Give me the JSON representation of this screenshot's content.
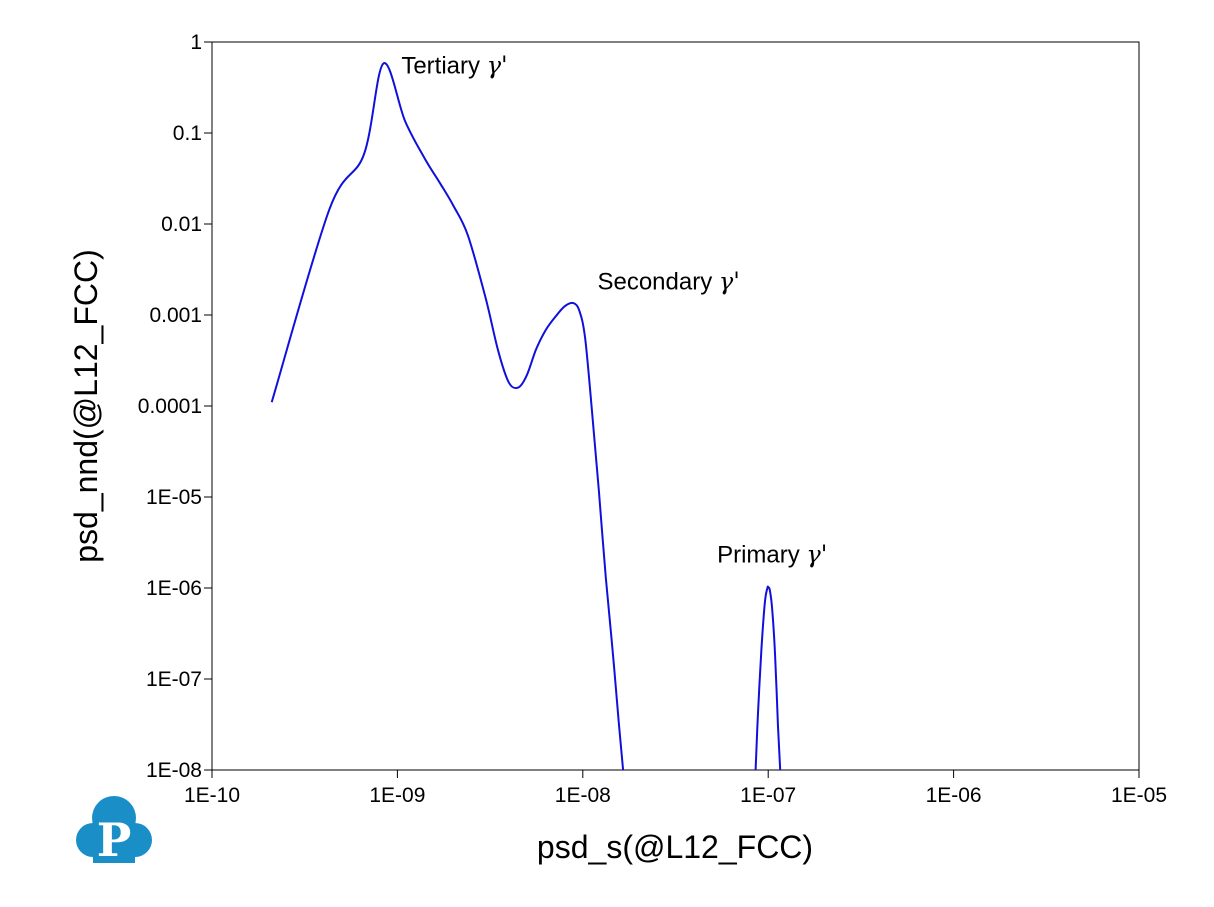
{
  "chart_data": {
    "type": "line",
    "title": "",
    "xlabel": "psd_s(@L12_FCC)",
    "ylabel": "psd_nnd(@L12_FCC)",
    "xscale": "log",
    "yscale": "log",
    "xlim": [
      1e-10,
      1e-05
    ],
    "ylim": [
      1e-08,
      1
    ],
    "grid": false,
    "legend": "none",
    "line_color": "#1010dd",
    "x_ticks": [
      {
        "value": 1e-10,
        "label": "1E-10"
      },
      {
        "value": 1e-09,
        "label": "1E-09"
      },
      {
        "value": 1e-08,
        "label": "1E-08"
      },
      {
        "value": 1e-07,
        "label": "1E-07"
      },
      {
        "value": 1e-06,
        "label": "1E-06"
      },
      {
        "value": 1e-05,
        "label": "1E-05"
      }
    ],
    "y_ticks": [
      {
        "value": 1,
        "label": "1"
      },
      {
        "value": 0.1,
        "label": "0.1"
      },
      {
        "value": 0.01,
        "label": "0.01"
      },
      {
        "value": 0.001,
        "label": "0.001"
      },
      {
        "value": 0.0001,
        "label": "0.0001"
      },
      {
        "value": 1e-05,
        "label": "1E-05"
      },
      {
        "value": 1e-06,
        "label": "1E-06"
      },
      {
        "value": 1e-07,
        "label": "1E-07"
      },
      {
        "value": 1e-08,
        "label": "1E-08"
      }
    ],
    "series": [
      {
        "x": [
          2.1e-10,
          4.3e-10,
          6.6e-10,
          8.4e-10,
          1.1e-09,
          1.4e-09,
          1.7e-09,
          2e-09,
          2.4e-09,
          3e-09,
          3.5e-09,
          4e-09,
          4.5e-09,
          5e-09,
          5.6e-09,
          6.3e-09,
          7.1e-09,
          8e-09,
          8.9e-09,
          9.6e-09,
          1.03e-08,
          1.12e-08,
          1.22e-08,
          1.33e-08,
          1.45e-08,
          1.56e-08,
          1.65e-08
        ],
        "y": [
          0.00011,
          0.0145,
          0.058,
          0.58,
          0.135,
          0.053,
          0.028,
          0.016,
          0.0075,
          0.0015,
          0.0004,
          0.00018,
          0.00016,
          0.00022,
          0.00042,
          0.00068,
          0.00095,
          0.00125,
          0.00135,
          0.0011,
          0.00055,
          9e-05,
          1.2e-05,
          1.3e-06,
          2e-07,
          3.5e-08,
          1e-08
        ]
      },
      {
        "x": [
          8.55e-08,
          8.8e-08,
          9.2e-08,
          9.6e-08,
          9.9e-08,
          1e-07,
          1.02e-07,
          1.05e-07,
          1.09e-07,
          1.13e-07,
          1.16e-07
        ],
        "y": [
          1e-08,
          4e-08,
          2.2e-07,
          7e-07,
          1e-06,
          1.02e-06,
          9.5e-07,
          6e-07,
          1.8e-07,
          3e-08,
          1e-08
        ]
      }
    ],
    "annotations": [
      {
        "text": "Tertiary ",
        "greek": "γ'",
        "x": 1.05e-09,
        "y": 0.45
      },
      {
        "text": "Secondary ",
        "greek": "γ'",
        "x": 1.2e-08,
        "y": 0.0019
      },
      {
        "text": "Primary ",
        "greek": "γ'",
        "x": 5.3e-08,
        "y": 1.9e-06
      }
    ]
  },
  "logo": {
    "letter": "P",
    "color": "#1a8fc7"
  }
}
